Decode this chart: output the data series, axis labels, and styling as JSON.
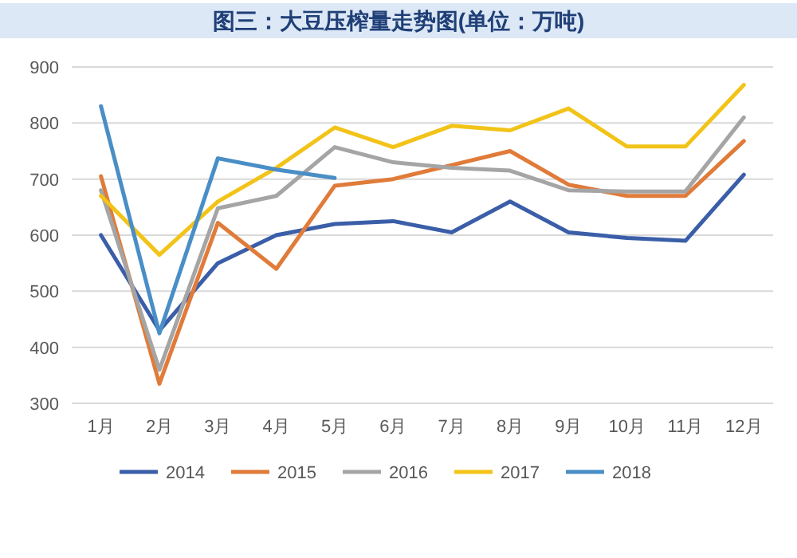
{
  "chart_data": {
    "type": "line",
    "title": "图三：大豆压榨量走势图(单位：万吨)",
    "categories": [
      "1月",
      "2月",
      "3月",
      "4月",
      "5月",
      "6月",
      "7月",
      "8月",
      "9月",
      "10月",
      "11月",
      "12月"
    ],
    "series": [
      {
        "name": "2014",
        "color": "#3a5ea8",
        "values": [
          600,
          430,
          550,
          600,
          620,
          625,
          605,
          660,
          605,
          595,
          590,
          708
        ]
      },
      {
        "name": "2015",
        "color": "#e07b39",
        "values": [
          705,
          335,
          622,
          540,
          688,
          700,
          725,
          750,
          690,
          670,
          670,
          768
        ]
      },
      {
        "name": "2016",
        "color": "#a5a5a5",
        "values": [
          680,
          360,
          648,
          670,
          757,
          730,
          720,
          715,
          680,
          678,
          678,
          810
        ]
      },
      {
        "name": "2017",
        "color": "#f2c318",
        "values": [
          670,
          565,
          660,
          720,
          792,
          757,
          795,
          787,
          826,
          758,
          758,
          868
        ]
      },
      {
        "name": "2018",
        "color": "#4a8ec6",
        "values": [
          830,
          425,
          737,
          717,
          702,
          null,
          null,
          null,
          null,
          null,
          null,
          null
        ]
      }
    ],
    "ylim": [
      300,
      900
    ],
    "yticks": [
      300,
      400,
      500,
      600,
      700,
      800,
      900
    ],
    "grid": "y",
    "legend": "bottom",
    "line_style": "solid",
    "marker": "none"
  }
}
